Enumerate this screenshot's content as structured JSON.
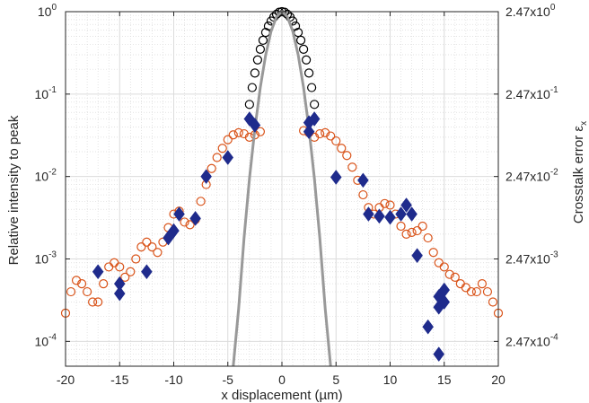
{
  "chart_data": {
    "type": "scatter",
    "title": "",
    "xlabel": "x displacement (µm)",
    "ylabel_left": "Relative intensity to peak",
    "ylabel_right": "Crosstalk error εx",
    "ylabel_right_main": "Crosstalk error ε",
    "ylabel_right_sub": "x",
    "y_scale": "log",
    "xlim": [
      -20,
      20
    ],
    "ylim": [
      5e-05,
      1
    ],
    "grid": true,
    "minor_grid": true,
    "legend": "none",
    "x_ticks": [
      -20,
      -15,
      -10,
      -5,
      0,
      5,
      10,
      15,
      20
    ],
    "x_tick_labels": [
      "-20",
      "-15",
      "-10",
      "-5",
      "0",
      "5",
      "10",
      "15",
      "20"
    ],
    "y_ticks_left": [
      {
        "value": 1,
        "base": "10",
        "exp": "0"
      },
      {
        "value": 0.1,
        "base": "10",
        "exp": "-1"
      },
      {
        "value": 0.01,
        "base": "10",
        "exp": "-2"
      },
      {
        "value": 0.001,
        "base": "10",
        "exp": "-3"
      },
      {
        "value": 0.0001,
        "base": "10",
        "exp": "-4"
      }
    ],
    "y_ticks_right": [
      {
        "value": 1,
        "base": "2.47x10",
        "exp": "0"
      },
      {
        "value": 0.1,
        "base": "2.47x10",
        "exp": "-1"
      },
      {
        "value": 0.01,
        "base": "2.47x10",
        "exp": "-2"
      },
      {
        "value": 0.001,
        "base": "2.47x10",
        "exp": "-3"
      },
      {
        "value": 0.0001,
        "base": "2.47x10",
        "exp": "-4"
      }
    ],
    "series": [
      {
        "marker": "circle-open",
        "color": "#d95319",
        "x": [
          -20.0,
          -19.5,
          -19.0,
          -18.5,
          -18.0,
          -17.5,
          -17.0,
          -16.5,
          -16.0,
          -15.5,
          -15.0,
          -14.5,
          -14.0,
          -13.5,
          -13.0,
          -12.5,
          -12.0,
          -11.5,
          -11.0,
          -10.5,
          -10.0,
          -9.5,
          -9.0,
          -8.5,
          -8.0,
          -7.5,
          -7.0,
          -6.5,
          -6.0,
          -5.5,
          -5.0,
          -4.5,
          -4.0,
          -3.5,
          -3.0,
          -2.5,
          -2.0,
          2.0,
          2.5,
          3.0,
          3.5,
          4.0,
          4.5,
          5.0,
          5.5,
          6.0,
          6.5,
          7.0,
          7.5,
          8.0,
          8.5,
          9.0,
          9.5,
          10.0,
          10.5,
          11.0,
          11.5,
          12.0,
          12.5,
          13.0,
          13.5,
          14.0,
          14.5,
          15.0,
          15.5,
          16.0,
          16.5,
          17.0,
          17.5,
          18.0,
          18.5,
          19.0,
          19.5,
          20.0
        ],
        "y": [
          0.00022,
          0.0004,
          0.00055,
          0.0005,
          0.0004,
          0.0003,
          0.0003,
          0.0005,
          0.0008,
          0.0009,
          0.0008,
          0.0006,
          0.0007,
          0.001,
          0.0014,
          0.0016,
          0.0014,
          0.0012,
          0.0016,
          0.0024,
          0.0035,
          0.0038,
          0.0028,
          0.0026,
          0.003,
          0.005,
          0.008,
          0.0125,
          0.017,
          0.022,
          0.028,
          0.032,
          0.034,
          0.033,
          0.03,
          0.032,
          0.035,
          0.036,
          0.034,
          0.03,
          0.033,
          0.034,
          0.031,
          0.027,
          0.022,
          0.018,
          0.013,
          0.009,
          0.006,
          0.0042,
          0.0035,
          0.0042,
          0.0047,
          0.0045,
          0.0035,
          0.0025,
          0.002,
          0.0021,
          0.0022,
          0.0025,
          0.0018,
          0.0012,
          0.0009,
          0.0008,
          0.00065,
          0.0006,
          0.0005,
          0.00045,
          0.0004,
          0.0004,
          0.0005,
          0.0004,
          0.0003,
          0.00022
        ]
      },
      {
        "marker": "circle-open",
        "color": "#000000",
        "x": [
          -3.0,
          -2.75,
          -2.5,
          -2.25,
          -2.0,
          -1.75,
          -1.5,
          -1.25,
          -1.0,
          -0.75,
          -0.5,
          -0.25,
          0.0,
          0.25,
          0.5,
          0.75,
          1.0,
          1.25,
          1.5,
          1.75,
          2.0,
          2.25,
          2.5,
          2.75,
          3.0
        ],
        "y": [
          0.075,
          0.12,
          0.18,
          0.26,
          0.35,
          0.45,
          0.56,
          0.67,
          0.77,
          0.86,
          0.93,
          0.985,
          1.0,
          0.985,
          0.93,
          0.86,
          0.77,
          0.67,
          0.56,
          0.45,
          0.35,
          0.26,
          0.18,
          0.12,
          0.075
        ]
      },
      {
        "marker": "line",
        "color": "#999999",
        "x": [
          -4.5,
          -4.0,
          -3.5,
          -3.0,
          -2.5,
          -2.0,
          -1.5,
          -1.0,
          -0.5,
          0.0,
          0.5,
          1.0,
          1.5,
          2.0,
          2.5,
          3.0,
          3.5,
          4.0,
          4.5
        ],
        "y": [
          5e-05,
          0.00025,
          0.0018,
          0.0095,
          0.038,
          0.12,
          0.3,
          0.58,
          0.87,
          1.0,
          0.87,
          0.58,
          0.3,
          0.12,
          0.038,
          0.0095,
          0.0018,
          0.00025,
          5e-05
        ]
      },
      {
        "marker": "diamond",
        "color": "#1f2b8c",
        "x": [
          -17.0,
          -15.0,
          -15.0,
          -12.5,
          -10.5,
          -10.0,
          -9.5,
          -8.0,
          -7.0,
          -5.0,
          -3.0,
          -2.5,
          2.5,
          2.5,
          3.0,
          5.0,
          7.5,
          8.0,
          9.0,
          10.0,
          11.0,
          11.5,
          12.0,
          12.5,
          13.5,
          14.5,
          14.5,
          14.5,
          15.0,
          15.0
        ],
        "y": [
          0.0007,
          0.0005,
          0.00038,
          0.0007,
          0.0018,
          0.0022,
          0.0035,
          0.0031,
          0.01,
          0.017,
          0.05,
          0.042,
          0.045,
          0.035,
          0.05,
          0.0098,
          0.009,
          0.0035,
          0.0033,
          0.0032,
          0.0035,
          0.0045,
          0.0035,
          0.0011,
          0.00015,
          0.00026,
          0.00035,
          7e-05,
          0.00042,
          0.0003
        ]
      }
    ]
  }
}
